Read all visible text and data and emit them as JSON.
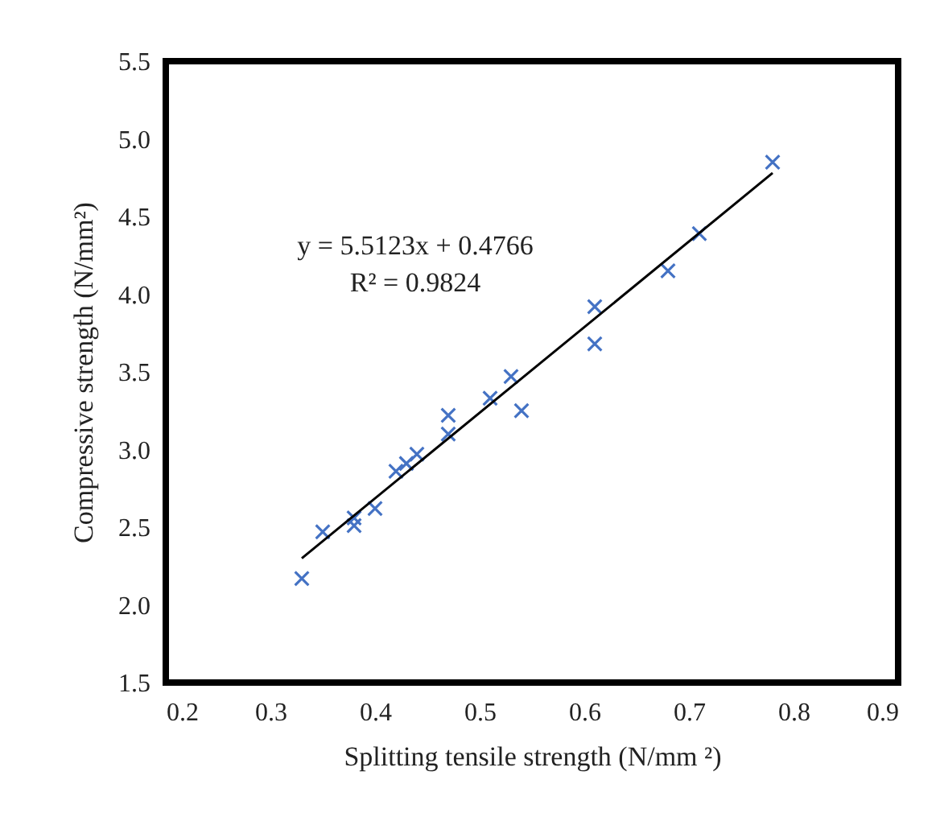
{
  "chart_data": {
    "type": "scatter",
    "xlabel": "Splitting tensile strength (N/mm ²)",
    "ylabel": "Compressive strength (N/mm²)",
    "xlim": [
      0.2,
      0.9
    ],
    "xticks": [
      0.2,
      0.3,
      0.4,
      0.5,
      0.6,
      0.7,
      0.8,
      0.9
    ],
    "ylim": [
      1.5,
      5.5
    ],
    "yticks": [
      1.5,
      {
        "value": 2,
        "label": "2.0"
      },
      2.5,
      {
        "value": 3,
        "label": "3.0"
      },
      3.5,
      {
        "value": 4,
        "label": "4.0"
      },
      4.5,
      {
        "value": 5,
        "label": "5.0"
      },
      5.5
    ],
    "grid": false,
    "annotations": [
      "y = 5.5123x + 0.4766",
      "R² = 0.9824"
    ],
    "series": [
      {
        "color": "#4472c4",
        "marker": "cross",
        "x": [
          0.33,
          0.35,
          0.38,
          0.38,
          0.4,
          0.42,
          0.43,
          0.44,
          0.47,
          0.47,
          0.51,
          0.53,
          0.54,
          0.61,
          0.61,
          0.68,
          0.71,
          0.78
        ],
        "values": [
          2.17,
          2.47,
          2.56,
          2.51,
          2.62,
          2.86,
          2.91,
          2.97,
          3.22,
          3.1,
          3.33,
          3.47,
          3.25,
          3.92,
          3.68,
          4.15,
          4.39,
          4.85
        ]
      },
      {
        "type": "line",
        "color": "#000000",
        "marker": "none",
        "x": [
          0.33,
          0.78
        ],
        "values": [
          2.3,
          4.78
        ]
      }
    ]
  }
}
